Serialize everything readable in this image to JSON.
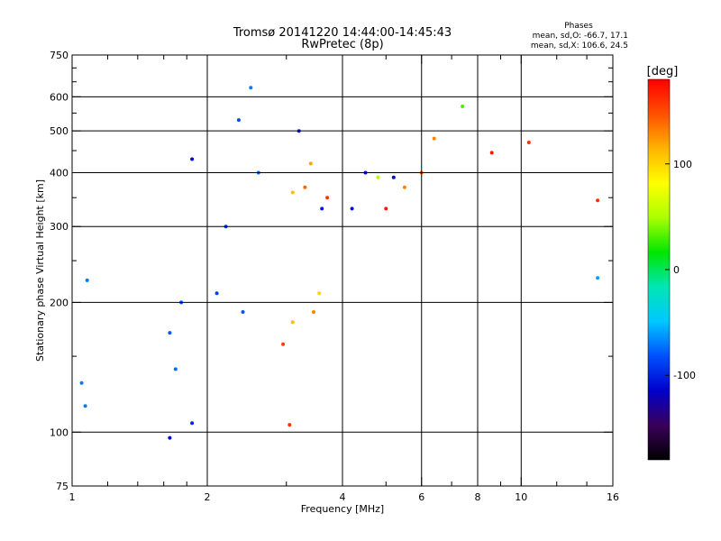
{
  "chart_data": {
    "type": "scatter",
    "title": "Tromsø 20141220 14:44:00-14:45:43",
    "subtitle": "RwPretec (8p)",
    "legend_header": "Phases",
    "stats_line1": "mean, sd,O: -66.7, 17.1",
    "stats_line2": "mean, sd,X: 106.6, 24.5",
    "xlabel": "Frequency [MHz]",
    "ylabel": "Stationary phase Virtual Height [km]",
    "xscale": "log",
    "yscale": "log",
    "xlim": [
      1,
      16
    ],
    "ylim": [
      75,
      750
    ],
    "x_ticks": [
      1,
      2,
      4,
      6,
      8,
      10,
      16
    ],
    "x_tick_labels": [
      "1",
      "2",
      "4",
      "6",
      "8",
      "10",
      "16"
    ],
    "x_minor_ticks": [
      1.2,
      1.4,
      1.6,
      1.8,
      3,
      5,
      7,
      9,
      12,
      14
    ],
    "y_ticks": [
      75,
      100,
      200,
      300,
      400,
      500,
      600,
      750
    ],
    "y_tick_labels": [
      "75",
      "100",
      "200",
      "300",
      "400",
      "500",
      "600",
      "750"
    ],
    "y_minor_ticks": [
      150,
      250,
      350,
      450,
      550,
      650,
      700
    ],
    "x_grid": [
      2,
      4,
      6,
      8,
      10
    ],
    "y_grid": [
      100,
      200,
      300,
      400,
      500,
      600
    ],
    "grid": true,
    "colorbar": {
      "label": "[deg]",
      "range": [
        -180,
        180
      ],
      "ticks": [
        100,
        0,
        -100
      ],
      "tick_labels": [
        "100",
        "0",
        "-100"
      ],
      "colormap": [
        "#000000",
        "#3a005a",
        "#0000cc",
        "#0050ff",
        "#00c8ff",
        "#00e6b4",
        "#00e600",
        "#aaff00",
        "#ffff00",
        "#ffb400",
        "#ff5000",
        "#ff0000"
      ]
    },
    "series": [
      {
        "values": [
          {
            "x": 1.85,
            "y": 430,
            "phase": -110
          },
          {
            "x": 2.35,
            "y": 530,
            "phase": -85
          },
          {
            "x": 2.5,
            "y": 630,
            "phase": -70
          },
          {
            "x": 2.6,
            "y": 400,
            "phase": -75
          },
          {
            "x": 2.2,
            "y": 300,
            "phase": -90
          },
          {
            "x": 3.6,
            "y": 330,
            "phase": -105
          },
          {
            "x": 4.2,
            "y": 330,
            "phase": -110
          },
          {
            "x": 4.5,
            "y": 400,
            "phase": -110
          },
          {
            "x": 5.2,
            "y": 390,
            "phase": -110
          },
          {
            "x": 3.2,
            "y": 500,
            "phase": -100
          },
          {
            "x": 3.4,
            "y": 420,
            "phase": 120
          },
          {
            "x": 3.3,
            "y": 370,
            "phase": 140
          },
          {
            "x": 3.1,
            "y": 360,
            "phase": 110
          },
          {
            "x": 3.7,
            "y": 350,
            "phase": 160
          },
          {
            "x": 5.0,
            "y": 330,
            "phase": 170
          },
          {
            "x": 5.5,
            "y": 370,
            "phase": 130
          },
          {
            "x": 4.8,
            "y": 390,
            "phase": 50
          },
          {
            "x": 1.75,
            "y": 200,
            "phase": -85
          },
          {
            "x": 1.65,
            "y": 170,
            "phase": -80
          },
          {
            "x": 2.1,
            "y": 210,
            "phase": -90
          },
          {
            "x": 2.4,
            "y": 190,
            "phase": -80
          },
          {
            "x": 1.7,
            "y": 140,
            "phase": -75
          },
          {
            "x": 3.1,
            "y": 180,
            "phase": 110
          },
          {
            "x": 3.45,
            "y": 190,
            "phase": 130
          },
          {
            "x": 3.55,
            "y": 210,
            "phase": 100
          },
          {
            "x": 2.95,
            "y": 160,
            "phase": 155
          },
          {
            "x": 1.05,
            "y": 130,
            "phase": -70
          },
          {
            "x": 1.07,
            "y": 115,
            "phase": -70
          },
          {
            "x": 1.85,
            "y": 105,
            "phase": -100
          },
          {
            "x": 1.65,
            "y": 97,
            "phase": -115
          },
          {
            "x": 3.05,
            "y": 104,
            "phase": 160
          },
          {
            "x": 6.4,
            "y": 480,
            "phase": 130
          },
          {
            "x": 6.0,
            "y": 400,
            "phase": 140
          },
          {
            "x": 8.6,
            "y": 445,
            "phase": 170
          },
          {
            "x": 10.4,
            "y": 470,
            "phase": 160
          },
          {
            "x": 14.8,
            "y": 345,
            "phase": 160
          },
          {
            "x": 14.8,
            "y": 228,
            "phase": -60
          },
          {
            "x": 1.08,
            "y": 225,
            "phase": -70
          },
          {
            "x": 7.4,
            "y": 570,
            "phase": 30
          }
        ]
      }
    ]
  }
}
